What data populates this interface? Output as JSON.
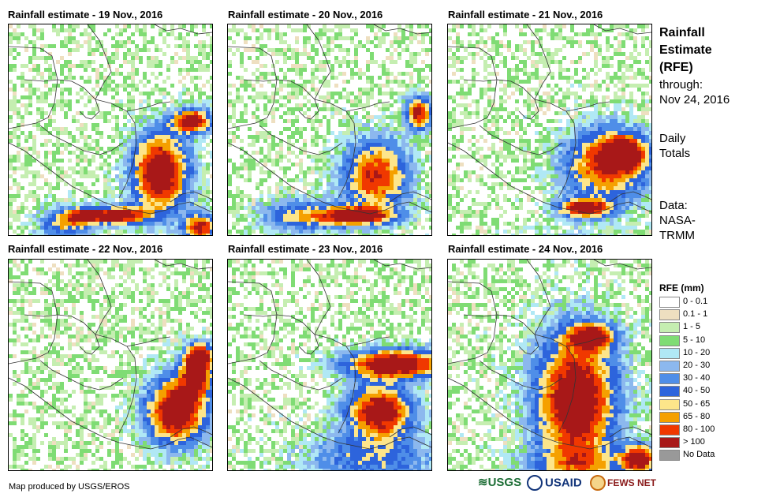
{
  "panels": [
    {
      "title": "Rainfall estimate - 19 Nov., 2016",
      "day": "19"
    },
    {
      "title": "Rainfall estimate - 20 Nov., 2016",
      "day": "20"
    },
    {
      "title": "Rainfall estimate - 21 Nov., 2016",
      "day": "21"
    },
    {
      "title": "Rainfall estimate - 22 Nov., 2016",
      "day": "22"
    },
    {
      "title": "Rainfall estimate - 23 Nov., 2016",
      "day": "23"
    },
    {
      "title": "Rainfall estimate - 24 Nov., 2016",
      "day": "24"
    }
  ],
  "sidebar": {
    "title_lines": [
      "Rainfall",
      "Estimate",
      "(RFE)"
    ],
    "through_label": "through:",
    "through_date": "Nov 24, 2016",
    "totals_lines": [
      "Daily",
      "Totals"
    ],
    "data_lines": [
      "Data:",
      "NASA-",
      "TRMM"
    ]
  },
  "legend": {
    "title": "RFE (mm)",
    "items": [
      {
        "label": "0 - 0.1",
        "color": "#ffffff"
      },
      {
        "label": "0.1 - 1",
        "color": "#eedfc0"
      },
      {
        "label": "1 - 5",
        "color": "#c5eeb1"
      },
      {
        "label": "5 - 10",
        "color": "#7fdc74"
      },
      {
        "label": "10 - 20",
        "color": "#b0e8f5"
      },
      {
        "label": "20 - 30",
        "color": "#8cb8ee"
      },
      {
        "label": "30 - 40",
        "color": "#4f8ee8"
      },
      {
        "label": "40 - 50",
        "color": "#2d64dc"
      },
      {
        "label": "50 - 65",
        "color": "#fde58a"
      },
      {
        "label": "65 - 80",
        "color": "#f5a000"
      },
      {
        "label": "80 - 100",
        "color": "#f03800"
      },
      {
        "label": "> 100",
        "color": "#a81818"
      },
      {
        "label": "No Data",
        "color": "#999999"
      }
    ]
  },
  "footer": {
    "credit": "Map produced by USGS/EROS",
    "logos": {
      "usgs": "USGS",
      "usaid": "USAID",
      "fews": "FEWS NET"
    }
  },
  "colors": {
    "outline": "#333333"
  }
}
